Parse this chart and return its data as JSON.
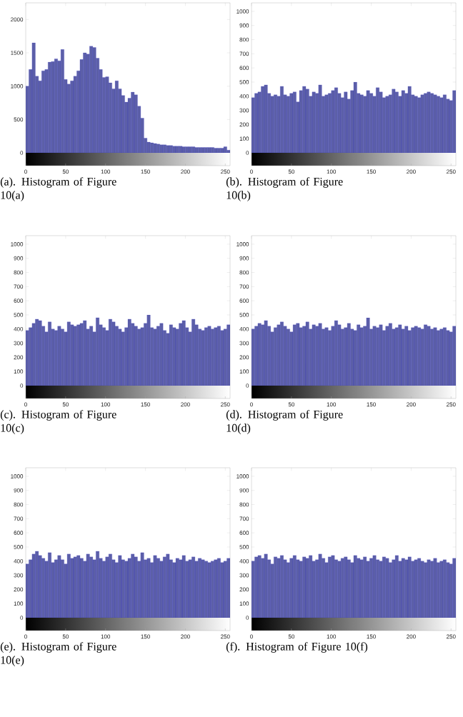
{
  "chart_data": [
    {
      "type": "histogram",
      "color": "#5c5fa8",
      "annotations": [
        "(a). Histogram of Figure 10(a)"
      ],
      "xlim": [
        0,
        256
      ],
      "ylim": [
        0,
        2250
      ],
      "xticks": [
        0,
        50,
        100,
        150,
        200,
        250
      ],
      "yticks": [
        0,
        500,
        1000,
        1500,
        2000
      ],
      "bins": [
        0,
        4,
        8,
        12,
        16,
        20,
        24,
        28,
        32,
        36,
        40,
        44,
        48,
        52,
        56,
        60,
        64,
        68,
        72,
        76,
        80,
        84,
        88,
        92,
        96,
        100,
        104,
        108,
        112,
        116,
        120,
        124,
        128,
        132,
        136,
        140,
        144,
        148,
        152,
        156,
        160,
        164,
        168,
        172,
        176,
        180,
        184,
        188,
        192,
        196,
        200,
        204,
        208,
        212,
        216,
        220,
        224,
        228,
        232,
        236,
        240,
        244,
        248,
        252,
        256
      ],
      "values": [
        1000,
        1250,
        1650,
        1150,
        1080,
        1230,
        1250,
        1360,
        1370,
        1410,
        1380,
        1550,
        1100,
        1030,
        1080,
        1150,
        1230,
        1400,
        1500,
        1480,
        1600,
        1580,
        1420,
        1250,
        1130,
        1140,
        1050,
        960,
        1080,
        960,
        860,
        760,
        820,
        910,
        870,
        700,
        520,
        220,
        160,
        150,
        140,
        130,
        120,
        120,
        110,
        110,
        100,
        100,
        100,
        90,
        90,
        90,
        90,
        80,
        80,
        80,
        80,
        80,
        80,
        70,
        70,
        70,
        90,
        40
      ]
    },
    {
      "type": "histogram",
      "color": "#5c5fa8",
      "annotations": [
        "(b). Histogram of Figure 10(b)"
      ],
      "xlim": [
        0,
        256
      ],
      "ylim": [
        0,
        1060
      ],
      "xticks": [
        0,
        50,
        100,
        150,
        200,
        250
      ],
      "yticks": [
        0,
        100,
        200,
        300,
        400,
        500,
        600,
        700,
        800,
        900,
        1000
      ],
      "bins": [
        0,
        4,
        8,
        12,
        16,
        20,
        24,
        28,
        32,
        36,
        40,
        44,
        48,
        52,
        56,
        60,
        64,
        68,
        72,
        76,
        80,
        84,
        88,
        92,
        96,
        100,
        104,
        108,
        112,
        116,
        120,
        124,
        128,
        132,
        136,
        140,
        144,
        148,
        152,
        156,
        160,
        164,
        168,
        172,
        176,
        180,
        184,
        188,
        192,
        196,
        200,
        204,
        208,
        212,
        216,
        220,
        224,
        228,
        232,
        236,
        240,
        244,
        248,
        252,
        256
      ],
      "values": [
        390,
        420,
        430,
        470,
        480,
        420,
        400,
        410,
        400,
        470,
        410,
        400,
        420,
        430,
        360,
        440,
        470,
        450,
        400,
        430,
        420,
        480,
        400,
        410,
        420,
        440,
        460,
        420,
        390,
        430,
        380,
        440,
        500,
        420,
        410,
        400,
        440,
        420,
        400,
        460,
        430,
        390,
        400,
        410,
        450,
        430,
        400,
        440,
        420,
        470,
        410,
        400,
        390,
        410,
        420,
        430,
        420,
        410,
        400,
        390,
        410,
        380,
        370,
        440
      ]
    },
    {
      "type": "histogram",
      "color": "#5c5fa8",
      "annotations": [
        "(c). Histogram of Figure 10(c)"
      ],
      "xlim": [
        0,
        256
      ],
      "ylim": [
        0,
        1060
      ],
      "xticks": [
        0,
        50,
        100,
        150,
        200,
        250
      ],
      "yticks": [
        0,
        100,
        200,
        300,
        400,
        500,
        600,
        700,
        800,
        900,
        1000
      ],
      "bins": [
        0,
        4,
        8,
        12,
        16,
        20,
        24,
        28,
        32,
        36,
        40,
        44,
        48,
        52,
        56,
        60,
        64,
        68,
        72,
        76,
        80,
        84,
        88,
        92,
        96,
        100,
        104,
        108,
        112,
        116,
        120,
        124,
        128,
        132,
        136,
        140,
        144,
        148,
        152,
        156,
        160,
        164,
        168,
        172,
        176,
        180,
        184,
        188,
        192,
        196,
        200,
        204,
        208,
        212,
        216,
        220,
        224,
        228,
        232,
        236,
        240,
        244,
        248,
        252,
        256
      ],
      "values": [
        390,
        410,
        440,
        470,
        460,
        420,
        380,
        450,
        400,
        390,
        420,
        400,
        380,
        450,
        430,
        420,
        430,
        440,
        460,
        400,
        420,
        380,
        480,
        430,
        410,
        390,
        470,
        450,
        420,
        400,
        380,
        410,
        470,
        440,
        420,
        400,
        410,
        440,
        500,
        410,
        400,
        420,
        440,
        390,
        370,
        430,
        410,
        400,
        440,
        460,
        410,
        380,
        470,
        430,
        400,
        390,
        410,
        420,
        400,
        410,
        420,
        390,
        400,
        430
      ]
    },
    {
      "type": "histogram",
      "color": "#5c5fa8",
      "annotations": [
        "(d). Histogram of Figure 10(d)"
      ],
      "xlim": [
        0,
        256
      ],
      "ylim": [
        0,
        1060
      ],
      "xticks": [
        0,
        50,
        100,
        150,
        200,
        250
      ],
      "yticks": [
        0,
        100,
        200,
        300,
        400,
        500,
        600,
        700,
        800,
        900,
        1000
      ],
      "bins": [
        0,
        4,
        8,
        12,
        16,
        20,
        24,
        28,
        32,
        36,
        40,
        44,
        48,
        52,
        56,
        60,
        64,
        68,
        72,
        76,
        80,
        84,
        88,
        92,
        96,
        100,
        104,
        108,
        112,
        116,
        120,
        124,
        128,
        132,
        136,
        140,
        144,
        148,
        152,
        156,
        160,
        164,
        168,
        172,
        176,
        180,
        184,
        188,
        192,
        196,
        200,
        204,
        208,
        212,
        216,
        220,
        224,
        228,
        232,
        236,
        240,
        244,
        248,
        252,
        256
      ],
      "values": [
        400,
        420,
        440,
        430,
        460,
        420,
        380,
        410,
        430,
        450,
        420,
        400,
        380,
        430,
        440,
        410,
        420,
        450,
        400,
        430,
        420,
        440,
        400,
        410,
        390,
        420,
        460,
        430,
        400,
        410,
        440,
        400,
        390,
        430,
        410,
        420,
        480,
        400,
        420,
        410,
        430,
        390,
        420,
        440,
        400,
        410,
        430,
        400,
        420,
        390,
        410,
        420,
        410,
        400,
        430,
        420,
        400,
        410,
        390,
        400,
        410,
        390,
        380,
        420
      ]
    },
    {
      "type": "histogram",
      "color": "#5c5fa8",
      "annotations": [
        "(e). Histogram of Figure 10(e)"
      ],
      "xlim": [
        0,
        256
      ],
      "ylim": [
        0,
        1060
      ],
      "xticks": [
        0,
        50,
        100,
        150,
        200,
        250
      ],
      "yticks": [
        0,
        100,
        200,
        300,
        400,
        500,
        600,
        700,
        800,
        900,
        1000
      ],
      "bins": [
        0,
        4,
        8,
        12,
        16,
        20,
        24,
        28,
        32,
        36,
        40,
        44,
        48,
        52,
        56,
        60,
        64,
        68,
        72,
        76,
        80,
        84,
        88,
        92,
        96,
        100,
        104,
        108,
        112,
        116,
        120,
        124,
        128,
        132,
        136,
        140,
        144,
        148,
        152,
        156,
        160,
        164,
        168,
        172,
        176,
        180,
        184,
        188,
        192,
        196,
        200,
        204,
        208,
        212,
        216,
        220,
        224,
        228,
        232,
        236,
        240,
        244,
        248,
        252,
        256
      ],
      "values": [
        380,
        410,
        450,
        470,
        440,
        420,
        400,
        460,
        390,
        410,
        440,
        410,
        380,
        450,
        420,
        430,
        440,
        420,
        400,
        450,
        430,
        410,
        470,
        420,
        400,
        430,
        450,
        410,
        390,
        440,
        410,
        400,
        420,
        450,
        430,
        400,
        460,
        410,
        420,
        390,
        440,
        420,
        400,
        430,
        450,
        410,
        390,
        420,
        410,
        440,
        400,
        410,
        430,
        400,
        420,
        410,
        400,
        390,
        400,
        410,
        420,
        390,
        400,
        420
      ]
    },
    {
      "type": "histogram",
      "color": "#5c5fa8",
      "annotations": [
        "(f). Histogram of Figure 10(f)"
      ],
      "xlim": [
        0,
        256
      ],
      "ylim": [
        0,
        1060
      ],
      "xticks": [
        0,
        50,
        100,
        150,
        200,
        250
      ],
      "yticks": [
        0,
        100,
        200,
        300,
        400,
        500,
        600,
        700,
        800,
        900,
        1000
      ],
      "bins": [
        0,
        4,
        8,
        12,
        16,
        20,
        24,
        28,
        32,
        36,
        40,
        44,
        48,
        52,
        56,
        60,
        64,
        68,
        72,
        76,
        80,
        84,
        88,
        92,
        96,
        100,
        104,
        108,
        112,
        116,
        120,
        124,
        128,
        132,
        136,
        140,
        144,
        148,
        152,
        156,
        160,
        164,
        168,
        172,
        176,
        180,
        184,
        188,
        192,
        196,
        200,
        204,
        208,
        212,
        216,
        220,
        224,
        228,
        232,
        236,
        240,
        244,
        248,
        252,
        256
      ],
      "values": [
        400,
        430,
        440,
        420,
        450,
        410,
        380,
        430,
        420,
        440,
        410,
        390,
        420,
        440,
        410,
        400,
        430,
        420,
        440,
        400,
        410,
        450,
        420,
        390,
        430,
        440,
        410,
        400,
        420,
        430,
        410,
        390,
        440,
        420,
        410,
        430,
        400,
        420,
        440,
        410,
        400,
        430,
        420,
        390,
        410,
        440,
        400,
        420,
        410,
        430,
        400,
        410,
        420,
        400,
        390,
        410,
        400,
        420,
        390,
        400,
        410,
        390,
        380,
        420
      ]
    }
  ]
}
